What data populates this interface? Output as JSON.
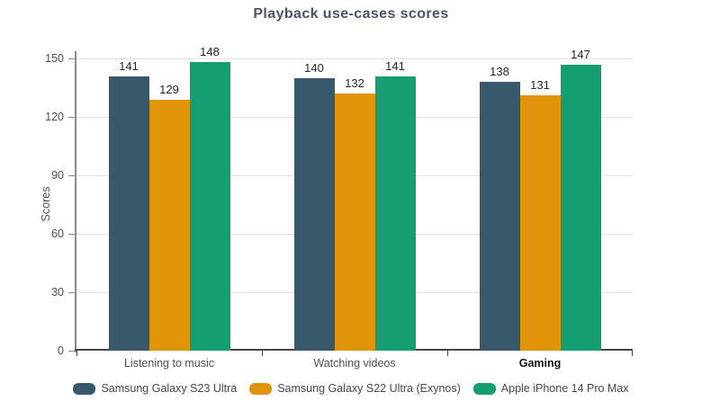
{
  "title": "Playback use-cases scores",
  "chart_data": {
    "type": "bar",
    "title": "Playback use-cases scores",
    "xlabel": "",
    "ylabel": "Scores",
    "categories": [
      "Listening to music",
      "Watching videos",
      "Gaming"
    ],
    "emphasized_category": "Gaming",
    "series": [
      {
        "name": "Samsung Galaxy S23 Ultra",
        "color": "#38596C",
        "values": [
          141,
          140,
          138
        ]
      },
      {
        "name": "Samsung Galaxy S22 Ultra (Exynos)",
        "color": "#E0940A",
        "values": [
          129,
          132,
          131
        ]
      },
      {
        "name": "Apple iPhone 14 Pro Max",
        "color": "#169D71",
        "values": [
          148,
          141,
          147
        ]
      }
    ],
    "ylim": [
      0,
      150
    ],
    "yticks": [
      0,
      30,
      60,
      90,
      120,
      150
    ],
    "grid": true,
    "legend_position": "bottom",
    "value_labels": true
  }
}
